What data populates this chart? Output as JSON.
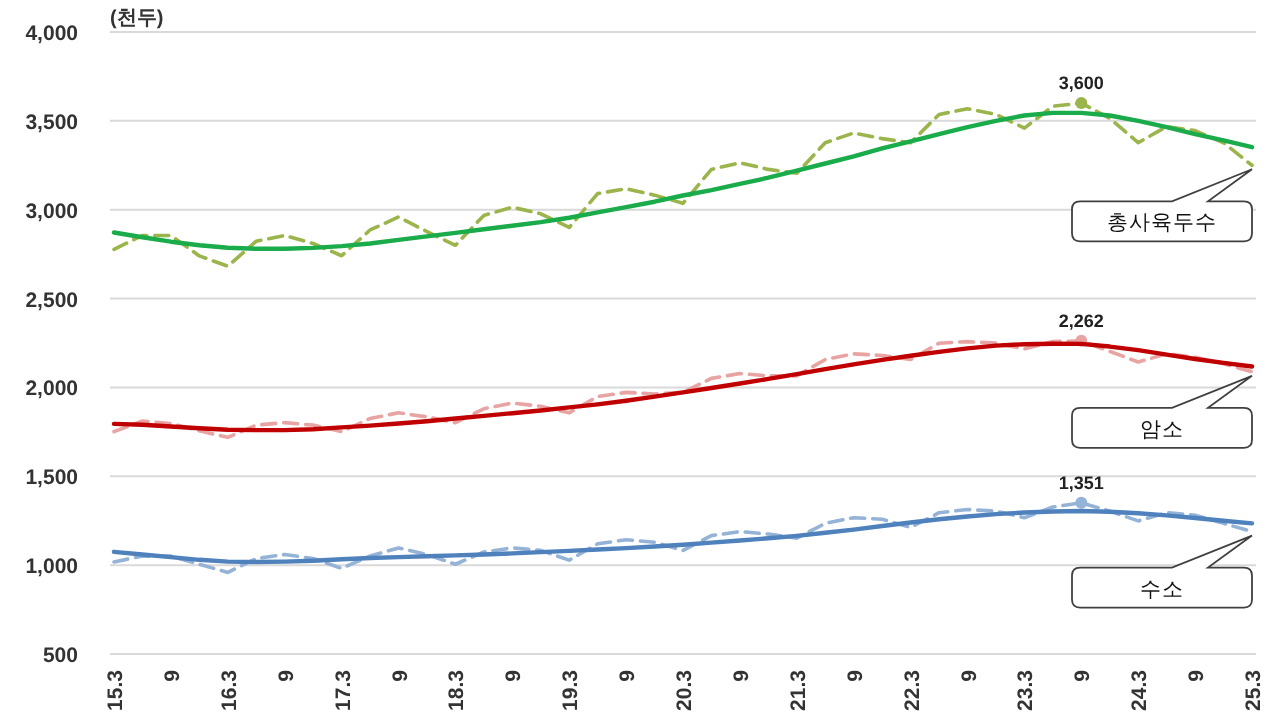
{
  "chart_data": {
    "type": "line",
    "ylabel": "(천두)",
    "categories": [
      "15.3",
      null,
      "9",
      null,
      "16.3",
      null,
      "9",
      null,
      "17.3",
      null,
      "9",
      null,
      "18.3",
      null,
      "9",
      null,
      "19.3",
      null,
      "9",
      null,
      "20.3",
      null,
      "9",
      null,
      "21.3",
      null,
      "9",
      null,
      "22.3",
      null,
      "9",
      null,
      "23.3",
      null,
      "9",
      null,
      "24.3",
      null,
      "9",
      null,
      "25.3"
    ],
    "ylim": [
      500,
      4000
    ],
    "yticks": [
      500,
      {
        "value": 1000,
        "label": "1,000"
      },
      {
        "value": 1500,
        "label": "1,500"
      },
      {
        "value": 2000,
        "label": "2,000"
      },
      {
        "value": 2500,
        "label": "2,500"
      },
      {
        "value": 3000,
        "label": "3,000"
      },
      {
        "value": 3500,
        "label": "3,500"
      },
      {
        "value": 4000,
        "label": "4,000"
      }
    ],
    "grid": "y",
    "series": [
      {
        "name": "총사육두수",
        "color": "#9bb54c",
        "line_style": "dashed",
        "values": [
          2777,
          2855,
          2855,
          2740,
          2682,
          2823,
          2855,
          2810,
          2741,
          2886,
          2959,
          2877,
          2800,
          2968,
          3014,
          2977,
          2900,
          3091,
          3118,
          3082,
          3036,
          3227,
          3264,
          3227,
          3205,
          3377,
          3432,
          3400,
          3377,
          3536,
          3568,
          3536,
          3459,
          3582,
          3600,
          3514,
          3377,
          3468,
          3445,
          3377,
          3250
        ],
        "value_labels": [
          null,
          null,
          null,
          null,
          null,
          null,
          null,
          null,
          null,
          null,
          null,
          null,
          null,
          null,
          null,
          null,
          null,
          null,
          null,
          null,
          null,
          null,
          null,
          null,
          null,
          null,
          null,
          null,
          null,
          null,
          null,
          null,
          null,
          null,
          "3,600",
          null,
          null,
          null,
          null,
          null,
          null
        ]
      },
      {
        "color": "#1aab4b",
        "line_style": "solid",
        "values": [
          2872,
          2845,
          2820,
          2800,
          2786,
          2780,
          2780,
          2785,
          2795,
          2810,
          2830,
          2850,
          2870,
          2890,
          2910,
          2930,
          2955,
          2985,
          3015,
          3045,
          3080,
          3110,
          3145,
          3180,
          3220,
          3260,
          3300,
          3345,
          3385,
          3425,
          3465,
          3500,
          3530,
          3545,
          3545,
          3530,
          3500,
          3465,
          3425,
          3390,
          3352
        ]
      },
      {
        "name": "암소",
        "color": "#e8a3a3",
        "line_style": "dashed",
        "values": [
          1751,
          1811,
          1797,
          1756,
          1719,
          1788,
          1802,
          1788,
          1751,
          1825,
          1857,
          1834,
          1802,
          1880,
          1912,
          1894,
          1857,
          1949,
          1972,
          1963,
          1972,
          2051,
          2078,
          2065,
          2065,
          2157,
          2189,
          2180,
          2157,
          2249,
          2258,
          2249,
          2217,
          2258,
          2262,
          2203,
          2143,
          2189,
          2170,
          2134,
          2088
        ],
        "value_labels": [
          null,
          null,
          null,
          null,
          null,
          null,
          null,
          null,
          null,
          null,
          null,
          null,
          null,
          null,
          null,
          null,
          null,
          null,
          null,
          null,
          null,
          null,
          null,
          null,
          null,
          null,
          null,
          null,
          null,
          null,
          null,
          null,
          null,
          null,
          "2,262",
          null,
          null,
          null,
          null,
          null,
          null
        ]
      },
      {
        "color": "#c00000",
        "line_style": "solid",
        "values": [
          1795,
          1790,
          1780,
          1770,
          1762,
          1760,
          1760,
          1765,
          1775,
          1785,
          1797,
          1810,
          1825,
          1840,
          1855,
          1870,
          1888,
          1905,
          1925,
          1948,
          1972,
          1997,
          2022,
          2048,
          2075,
          2103,
          2130,
          2155,
          2178,
          2200,
          2220,
          2235,
          2243,
          2246,
          2245,
          2230,
          2210,
          2185,
          2160,
          2138,
          2118
        ]
      },
      {
        "name": "수소",
        "color": "#95b3d7",
        "line_style": "dashed",
        "values": [
          1018,
          1051,
          1051,
          1005,
          959,
          1037,
          1060,
          1037,
          982,
          1051,
          1097,
          1060,
          1005,
          1074,
          1097,
          1083,
          1028,
          1120,
          1143,
          1129,
          1083,
          1166,
          1189,
          1175,
          1152,
          1235,
          1267,
          1258,
          1212,
          1295,
          1313,
          1304,
          1267,
          1327,
          1351,
          1304,
          1249,
          1295,
          1281,
          1235,
          1189
        ],
        "value_labels": [
          null,
          null,
          null,
          null,
          null,
          null,
          null,
          null,
          null,
          null,
          null,
          null,
          null,
          null,
          null,
          null,
          null,
          null,
          null,
          null,
          null,
          null,
          null,
          null,
          null,
          null,
          null,
          null,
          null,
          null,
          null,
          null,
          null,
          null,
          "1,351",
          null,
          null,
          null,
          null,
          null,
          null
        ]
      },
      {
        "color": "#4f81bd",
        "line_style": "solid",
        "values": [
          1075,
          1060,
          1045,
          1030,
          1020,
          1018,
          1020,
          1025,
          1033,
          1040,
          1045,
          1050,
          1055,
          1060,
          1066,
          1073,
          1080,
          1088,
          1096,
          1105,
          1115,
          1127,
          1139,
          1151,
          1165,
          1182,
          1200,
          1220,
          1240,
          1258,
          1274,
          1287,
          1296,
          1302,
          1305,
          1300,
          1292,
          1280,
          1265,
          1250,
          1235
        ]
      }
    ]
  }
}
